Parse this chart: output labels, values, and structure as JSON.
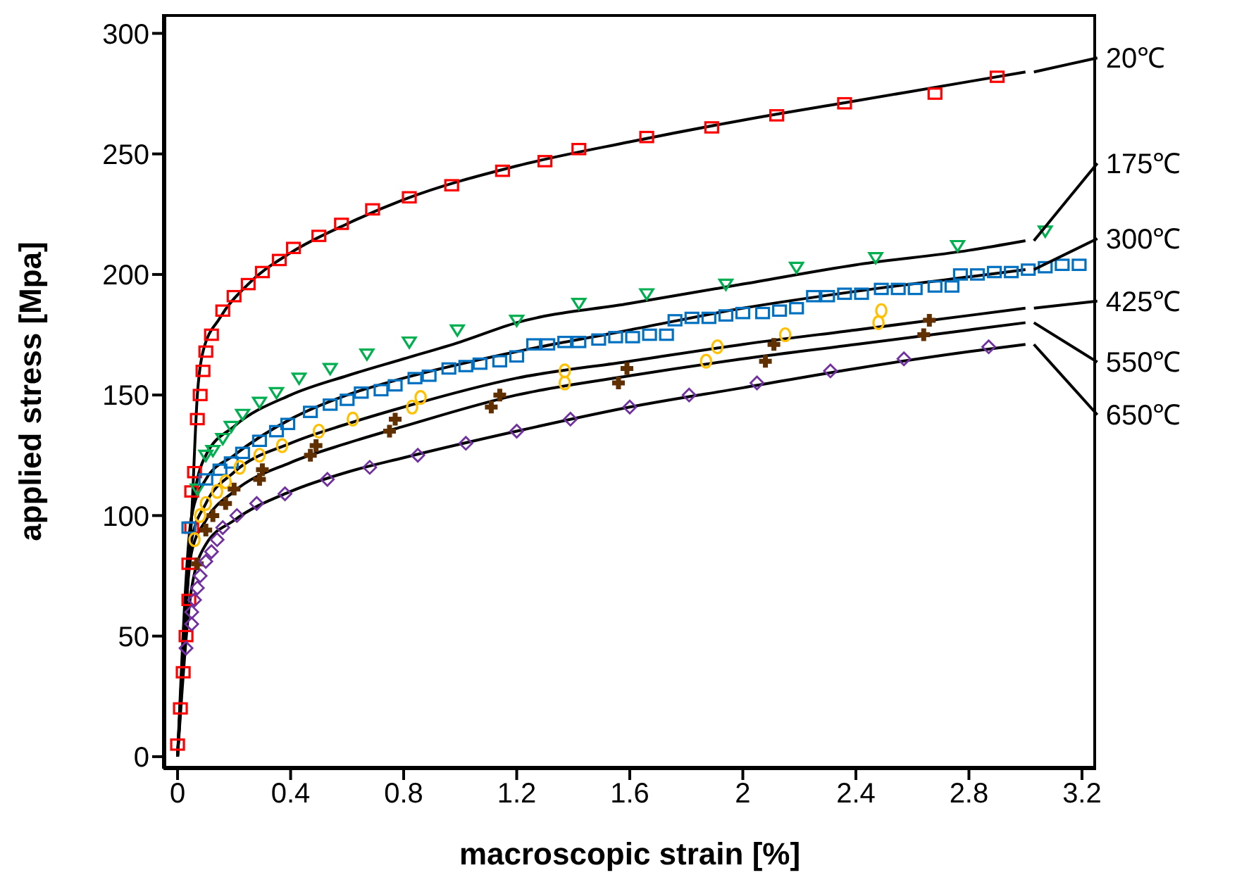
{
  "chart_data": {
    "type": "line",
    "xlabel": "macroscopic strain [%]",
    "ylabel": "applied stress [Mpa]",
    "xlim": [
      -0.05,
      3.25
    ],
    "ylim": [
      -5,
      308
    ],
    "xticks": [
      0,
      0.4,
      0.8,
      1.2,
      1.6,
      2,
      2.4,
      2.8,
      3.2
    ],
    "yticks": [
      0,
      50,
      100,
      150,
      200,
      250,
      300
    ],
    "grid": false,
    "legend": "right",
    "series": [
      {
        "type": "scatter",
        "marker": "square",
        "color": "#ff0000",
        "x": [
          0,
          0.01,
          0.02,
          0.03,
          0.04,
          0.04,
          0.05,
          0.05,
          0.06,
          0.07,
          0.08,
          0.09,
          0.1,
          0.12,
          0.16,
          0.2,
          0.25,
          0.3,
          0.36,
          0.41,
          0.5,
          0.58,
          0.69,
          0.82,
          0.97,
          1.15,
          1.3,
          1.42,
          1.66,
          1.89,
          2.12,
          2.36,
          2.68,
          2.9
        ],
        "values": [
          5,
          20,
          35,
          50,
          65,
          80,
          95,
          110,
          118,
          140,
          150,
          160,
          168,
          175,
          185,
          191,
          196,
          201,
          206,
          211,
          216,
          221,
          227,
          232,
          237,
          243,
          247,
          252,
          257,
          261,
          266,
          271,
          275,
          282
        ]
      },
      {
        "name": "20℃",
        "color": "#000000",
        "marker": "none",
        "x": [
          0,
          0.02,
          0.05,
          0.07,
          0.09,
          0.15,
          0.25,
          0.4,
          0.6,
          0.8,
          1.2,
          1.6,
          2,
          2.4,
          2.8,
          3
        ],
        "values": [
          0,
          40,
          100,
          150,
          168,
          182,
          196,
          209,
          221,
          231,
          245,
          255,
          264,
          272,
          280,
          284
        ]
      },
      {
        "type": "scatter",
        "marker": "triangle",
        "color": "#00b050",
        "x": [
          0.07,
          0.1,
          0.125,
          0.16,
          0.19,
          0.23,
          0.29,
          0.35,
          0.43,
          0.54,
          0.67,
          0.82,
          0.99,
          1.2,
          1.42,
          1.66,
          1.94,
          2.19,
          2.47,
          2.76,
          3.07
        ],
        "values": [
          111,
          125,
          127,
          132,
          137,
          142,
          147,
          151,
          157,
          161,
          167,
          172,
          177,
          181,
          188,
          192,
          196,
          203,
          207,
          212,
          218
        ]
      },
      {
        "name": "175℃",
        "color": "#000000",
        "marker": "none",
        "x": [
          0,
          0.03,
          0.05,
          0.07,
          0.1,
          0.2,
          0.4,
          0.6,
          0.8,
          1,
          1.2,
          1.6,
          2,
          2.4,
          2.8,
          3
        ],
        "values": [
          0,
          60,
          100,
          115,
          125,
          137,
          150,
          158,
          165,
          172,
          180,
          188,
          196,
          204,
          210,
          214
        ]
      },
      {
        "type": "scatter",
        "marker": "square",
        "color": "#0070c0",
        "x": [
          0.04,
          0.1,
          0.15,
          0.19,
          0.23,
          0.29,
          0.35,
          0.39,
          0.47,
          0.54,
          0.6,
          0.65,
          0.72,
          0.77,
          0.84,
          0.89,
          0.96,
          1.02,
          1.07,
          1.14,
          1.2,
          1.26,
          1.31,
          1.37,
          1.42,
          1.49,
          1.55,
          1.61,
          1.67,
          1.73,
          1.76,
          1.82,
          1.88,
          1.94,
          2,
          2.07,
          2.13,
          2.19,
          2.25,
          2.3,
          2.36,
          2.42,
          2.49,
          2.55,
          2.61,
          2.68,
          2.74,
          2.77,
          2.83,
          2.89,
          2.95,
          3.01,
          3.07,
          3.13,
          3.19
        ],
        "values": [
          95,
          115,
          119,
          122,
          126,
          131,
          135,
          138,
          143,
          146,
          148,
          151,
          152,
          154,
          157,
          158,
          161,
          162,
          163,
          164,
          166,
          171,
          171,
          172,
          172,
          173,
          174,
          174,
          175,
          175,
          181,
          182,
          182,
          183,
          184,
          184,
          185,
          186,
          191,
          191,
          192,
          192,
          194,
          194,
          194,
          195,
          195,
          200,
          200,
          201,
          201,
          202,
          203,
          204,
          204
        ]
      },
      {
        "name": "300℃",
        "color": "#000000",
        "marker": "none",
        "x": [
          0,
          0.05,
          0.1,
          0.2,
          0.4,
          0.6,
          0.8,
          1.2,
          1.6,
          2,
          2.4,
          2.8,
          3
        ],
        "values": [
          0,
          100,
          115,
          125,
          140,
          150,
          157,
          168,
          177,
          186,
          193,
          199,
          202
        ]
      },
      {
        "type": "scatter",
        "marker": "circle",
        "color": "#ffc000",
        "x": [
          0.06,
          0.08,
          0.1,
          0.14,
          0.17,
          0.22,
          0.29,
          0.37,
          0.5,
          0.62,
          0.83,
          0.86,
          1.37,
          1.37,
          1.87,
          1.91,
          2.15,
          2.48,
          2.49
        ],
        "values": [
          90,
          100,
          105,
          110,
          114,
          120,
          125,
          129,
          135,
          140,
          145,
          149,
          155,
          160,
          164,
          170,
          175,
          180,
          185
        ]
      },
      {
        "name": "425℃",
        "color": "#000000",
        "marker": "none",
        "x": [
          0,
          0.05,
          0.1,
          0.2,
          0.4,
          0.6,
          0.8,
          1.2,
          1.6,
          2,
          2.4,
          2.8,
          3
        ],
        "values": [
          0,
          90,
          105,
          118,
          130,
          138,
          145,
          157,
          164,
          171,
          177,
          183,
          186
        ]
      },
      {
        "type": "scatter",
        "marker": "cross",
        "color": "#603000",
        "x": [
          0.07,
          0.1,
          0.125,
          0.17,
          0.2,
          0.29,
          0.3,
          0.47,
          0.49,
          0.75,
          0.77,
          1.11,
          1.14,
          1.56,
          1.59,
          2.08,
          2.11,
          2.64,
          2.66
        ],
        "values": [
          80,
          94,
          100,
          105,
          111,
          115,
          119,
          125,
          129,
          135,
          140,
          145,
          150,
          155,
          161,
          164,
          171,
          175,
          181
        ]
      },
      {
        "name": "550℃",
        "color": "#000000",
        "marker": "none",
        "x": [
          0,
          0.05,
          0.1,
          0.2,
          0.4,
          0.6,
          0.8,
          1.2,
          1.6,
          2,
          2.4,
          2.8,
          3
        ],
        "values": [
          0,
          85,
          98,
          110,
          122,
          130,
          137,
          150,
          158,
          165,
          171,
          177,
          180
        ]
      },
      {
        "type": "scatter",
        "marker": "diamond",
        "color": "#7030a0",
        "x": [
          0.03,
          0.05,
          0.05,
          0.06,
          0.07,
          0.08,
          0.1,
          0.12,
          0.14,
          0.16,
          0.21,
          0.28,
          0.38,
          0.53,
          0.68,
          0.85,
          1.02,
          1.2,
          1.39,
          1.6,
          1.81,
          2.05,
          2.31,
          2.57,
          2.87
        ],
        "values": [
          45,
          55,
          60,
          65,
          70,
          75,
          81,
          85,
          90,
          95,
          100,
          105,
          109,
          115,
          120,
          125,
          130,
          135,
          140,
          145,
          150,
          155,
          160,
          165,
          170
        ]
      },
      {
        "name": "650℃",
        "color": "#000000",
        "marker": "none",
        "x": [
          0,
          0.05,
          0.1,
          0.2,
          0.4,
          0.6,
          0.8,
          1.2,
          1.6,
          2,
          2.4,
          2.8,
          3
        ],
        "values": [
          0,
          70,
          88,
          98,
          110,
          118,
          124,
          135,
          145,
          153,
          161,
          168,
          171
        ]
      }
    ]
  }
}
